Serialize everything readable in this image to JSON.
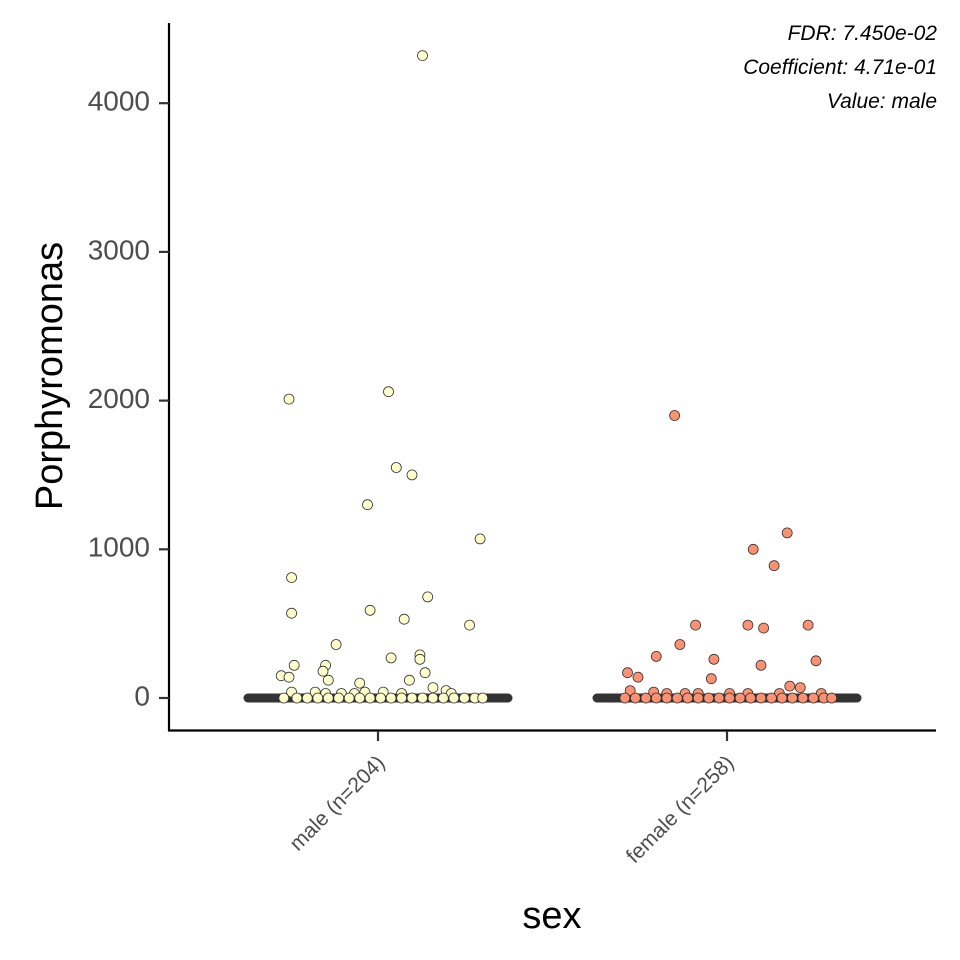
{
  "chart_data": {
    "type": "scatter",
    "xlabel": "sex",
    "ylabel": "Porphyromonas",
    "ylim": [
      -220,
      4550
    ],
    "yticks": [
      0,
      1000,
      2000,
      3000,
      4000
    ],
    "grid": false,
    "annotations": [
      "FDR: 7.450e-02",
      "Coefficient: 4.71e-01",
      "Value: male"
    ],
    "categories": [
      "male (n=204)",
      "female (n=258)"
    ],
    "colors": {
      "male (n=204)": "#ffffcc",
      "female (n=258)": "#fc9272",
      "median_bar": "#333333",
      "point_outline": "#333333",
      "axis": "#000000"
    },
    "medians": [
      0,
      0
    ],
    "series": [
      {
        "category": "male (n=204)",
        "points": [
          {
            "jitter": 0.17,
            "y": 4320
          },
          {
            "jitter": -0.34,
            "y": 2010
          },
          {
            "jitter": 0.04,
            "y": 2060
          },
          {
            "jitter": 0.07,
            "y": 1550
          },
          {
            "jitter": 0.13,
            "y": 1500
          },
          {
            "jitter": -0.04,
            "y": 1300
          },
          {
            "jitter": 0.39,
            "y": 1070
          },
          {
            "jitter": -0.33,
            "y": 810
          },
          {
            "jitter": 0.19,
            "y": 680
          },
          {
            "jitter": -0.33,
            "y": 570
          },
          {
            "jitter": -0.03,
            "y": 590
          },
          {
            "jitter": 0.1,
            "y": 530
          },
          {
            "jitter": 0.35,
            "y": 490
          },
          {
            "jitter": -0.16,
            "y": 360
          },
          {
            "jitter": 0.16,
            "y": 290
          },
          {
            "jitter": 0.16,
            "y": 260
          },
          {
            "jitter": 0.05,
            "y": 270
          },
          {
            "jitter": -0.32,
            "y": 220
          },
          {
            "jitter": -0.2,
            "y": 220
          },
          {
            "jitter": 0.18,
            "y": 170
          },
          {
            "jitter": -0.37,
            "y": 150
          },
          {
            "jitter": -0.34,
            "y": 140
          },
          {
            "jitter": -0.21,
            "y": 180
          },
          {
            "jitter": -0.19,
            "y": 120
          },
          {
            "jitter": 0.12,
            "y": 120
          },
          {
            "jitter": -0.07,
            "y": 100
          },
          {
            "jitter": 0.21,
            "y": 70
          },
          {
            "jitter": 0.26,
            "y": 50
          },
          {
            "jitter": -0.33,
            "y": 40
          },
          {
            "jitter": -0.24,
            "y": 40
          },
          {
            "jitter": -0.2,
            "y": 30
          },
          {
            "jitter": -0.14,
            "y": 30
          },
          {
            "jitter": -0.09,
            "y": 30
          },
          {
            "jitter": -0.05,
            "y": 40
          },
          {
            "jitter": 0.02,
            "y": 40
          },
          {
            "jitter": 0.09,
            "y": 30
          },
          {
            "jitter": 0.28,
            "y": 30
          },
          {
            "jitter": -0.36,
            "y": 0
          },
          {
            "jitter": -0.31,
            "y": 0
          },
          {
            "jitter": -0.27,
            "y": 0
          },
          {
            "jitter": -0.23,
            "y": 0
          },
          {
            "jitter": -0.19,
            "y": 0
          },
          {
            "jitter": -0.15,
            "y": 0
          },
          {
            "jitter": -0.11,
            "y": 0
          },
          {
            "jitter": -0.07,
            "y": 0
          },
          {
            "jitter": -0.03,
            "y": 0
          },
          {
            "jitter": 0.01,
            "y": 0
          },
          {
            "jitter": 0.05,
            "y": 0
          },
          {
            "jitter": 0.09,
            "y": 0
          },
          {
            "jitter": 0.13,
            "y": 0
          },
          {
            "jitter": 0.17,
            "y": 0
          },
          {
            "jitter": 0.21,
            "y": 0
          },
          {
            "jitter": 0.25,
            "y": 0
          },
          {
            "jitter": 0.29,
            "y": 0
          },
          {
            "jitter": 0.33,
            "y": 0
          },
          {
            "jitter": 0.37,
            "y": 0
          },
          {
            "jitter": 0.4,
            "y": 0
          }
        ]
      },
      {
        "category": "female (n=258)",
        "points": [
          {
            "jitter": -0.2,
            "y": 1900
          },
          {
            "jitter": 0.23,
            "y": 1110
          },
          {
            "jitter": 0.1,
            "y": 1000
          },
          {
            "jitter": 0.18,
            "y": 890
          },
          {
            "jitter": -0.12,
            "y": 490
          },
          {
            "jitter": 0.08,
            "y": 490
          },
          {
            "jitter": 0.14,
            "y": 470
          },
          {
            "jitter": 0.31,
            "y": 490
          },
          {
            "jitter": -0.18,
            "y": 360
          },
          {
            "jitter": -0.27,
            "y": 280
          },
          {
            "jitter": -0.05,
            "y": 260
          },
          {
            "jitter": 0.13,
            "y": 220
          },
          {
            "jitter": 0.34,
            "y": 250
          },
          {
            "jitter": -0.38,
            "y": 170
          },
          {
            "jitter": -0.34,
            "y": 140
          },
          {
            "jitter": -0.06,
            "y": 130
          },
          {
            "jitter": 0.24,
            "y": 80
          },
          {
            "jitter": 0.28,
            "y": 70
          },
          {
            "jitter": -0.37,
            "y": 50
          },
          {
            "jitter": -0.28,
            "y": 40
          },
          {
            "jitter": -0.23,
            "y": 30
          },
          {
            "jitter": -0.16,
            "y": 30
          },
          {
            "jitter": -0.11,
            "y": 30
          },
          {
            "jitter": 0.01,
            "y": 30
          },
          {
            "jitter": 0.08,
            "y": 30
          },
          {
            "jitter": 0.2,
            "y": 30
          },
          {
            "jitter": 0.36,
            "y": 30
          },
          {
            "jitter": -0.39,
            "y": 0
          },
          {
            "jitter": -0.35,
            "y": 0
          },
          {
            "jitter": -0.31,
            "y": 0
          },
          {
            "jitter": -0.27,
            "y": 0
          },
          {
            "jitter": -0.23,
            "y": 0
          },
          {
            "jitter": -0.19,
            "y": 0
          },
          {
            "jitter": -0.15,
            "y": 0
          },
          {
            "jitter": -0.11,
            "y": 0
          },
          {
            "jitter": -0.07,
            "y": 0
          },
          {
            "jitter": -0.03,
            "y": 0
          },
          {
            "jitter": 0.01,
            "y": 0
          },
          {
            "jitter": 0.05,
            "y": 0
          },
          {
            "jitter": 0.09,
            "y": 0
          },
          {
            "jitter": 0.13,
            "y": 0
          },
          {
            "jitter": 0.17,
            "y": 0
          },
          {
            "jitter": 0.21,
            "y": 0
          },
          {
            "jitter": 0.25,
            "y": 0
          },
          {
            "jitter": 0.29,
            "y": 0
          },
          {
            "jitter": 0.33,
            "y": 0
          },
          {
            "jitter": 0.37,
            "y": 0
          },
          {
            "jitter": 0.4,
            "y": 0
          }
        ]
      }
    ]
  }
}
